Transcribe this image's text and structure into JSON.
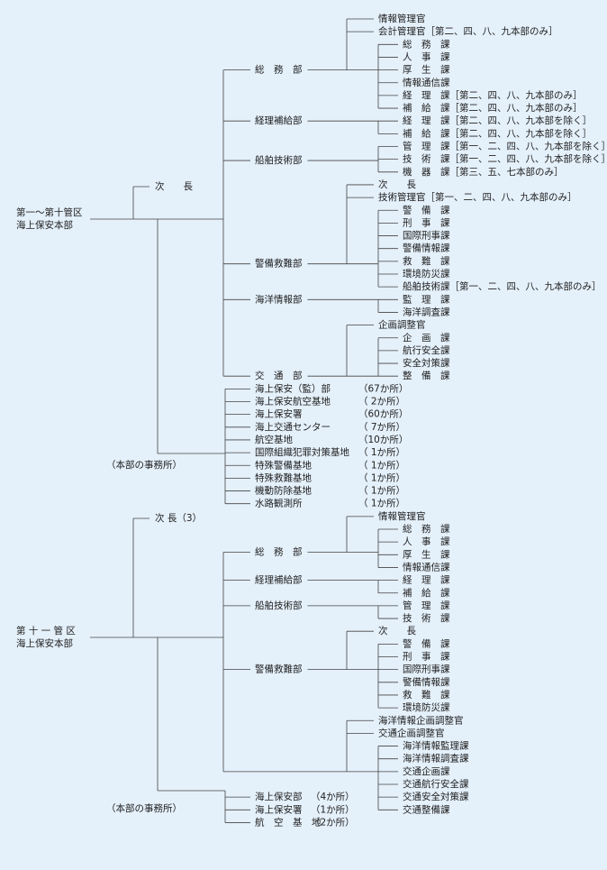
{
  "sections": [
    {
      "root": [
        "第一～第十管区",
        "海上保安本部"
      ],
      "deputy": "次　　長",
      "office_label": "（本部の事務所）",
      "departments": [
        {
          "name": "総　務　部",
          "officers": [
            "情報管理官",
            "会計管理官［第二、四、八、九本部のみ］"
          ],
          "divisions": [
            "総　務　課",
            "人　事　課",
            "厚　生　課",
            "情報通信課",
            "経　理　課［第二、四、八、九本部のみ］",
            "補　給　課［第二、四、八、九本部のみ］"
          ]
        },
        {
          "name": "経理補給部",
          "divisions": [
            "経　理　課［第二、四、八、九本部を除く］",
            "補　給　課［第二、四、八、九本部を除く］"
          ]
        },
        {
          "name": "船舶技術部",
          "divisions": [
            "管　理　課［第一、二、四、八、九本部を除く］",
            "技　術　課［第一、二、四、八、九本部を除く］",
            "機　器　課［第三、五、七本部のみ］"
          ]
        },
        {
          "name": "警備救難部",
          "officers": [
            "次　　長",
            "技術管理官［第一、二、四、八、九本部のみ］"
          ],
          "divisions": [
            "警　備　課",
            "刑　事　課",
            "国際刑事課",
            "警備情報課",
            "救　難　課",
            "環境防災課",
            "船舶技術課［第一、二、四、八、九本部のみ］"
          ]
        },
        {
          "name": "海洋情報部",
          "divisions": [
            "監　理　課",
            "海洋調査課"
          ]
        },
        {
          "name": "交　通　部",
          "officers": [
            "企画調整官"
          ],
          "divisions": [
            "企　画　課",
            "航行安全課",
            "安全対策課",
            "整　備　課"
          ]
        }
      ],
      "offices": [
        {
          "name": "海上保安（監）部",
          "count": "（67か所）"
        },
        {
          "name": "海上保安航空基地",
          "count": "（ 2か所）"
        },
        {
          "name": "海上保安署",
          "count": "（60か所）"
        },
        {
          "name": "海上交通センター",
          "count": "（ 7か所）"
        },
        {
          "name": "航空基地",
          "count": "（10か所）"
        },
        {
          "name": "国際組織犯罪対策基地",
          "count": "（ 1か所）"
        },
        {
          "name": "特殊警備基地",
          "count": "（ 1か所）"
        },
        {
          "name": "特殊救難基地",
          "count": "（ 1か所）"
        },
        {
          "name": "機動防除基地",
          "count": "（ 1か所）"
        },
        {
          "name": "水路観測所",
          "count": "（ 1か所）"
        }
      ]
    },
    {
      "root": [
        "第 十 一 管 区",
        "海上保安本部"
      ],
      "deputy": "次 長（3）",
      "office_label": "（本部の事務所）",
      "departments": [
        {
          "name": "総　務　部",
          "officers": [
            "情報管理官"
          ],
          "divisions": [
            "総　務　課",
            "人　事　課",
            "厚　生　課",
            "情報通信課"
          ]
        },
        {
          "name": "経理補給部",
          "divisions": [
            "経　理　課",
            "補　給　課"
          ]
        },
        {
          "name": "船舶技術部",
          "divisions": [
            "管　理　課",
            "技　術　課"
          ]
        },
        {
          "name": "警備救難部",
          "officers": [
            "次　　長"
          ],
          "divisions": [
            "警　備　課",
            "刑　事　課",
            "国際刑事課",
            "警備情報課",
            "救　難　課",
            "環境防災課"
          ]
        },
        {
          "officers": [
            "海洋情報企画調整官",
            "交通企画調整官"
          ],
          "divisions": [
            "海洋情報監理課",
            "海洋情報調査課",
            "交通企画課",
            "交通航行安全課",
            "交通安全対策課",
            "交通整備課"
          ]
        }
      ],
      "offices": [
        {
          "name": "海上保安部",
          "count": "（4か所）"
        },
        {
          "name": "海上保安署",
          "count": "（1か所）"
        },
        {
          "name": "航　空　基　地",
          "count": "（2か所）"
        }
      ]
    }
  ]
}
